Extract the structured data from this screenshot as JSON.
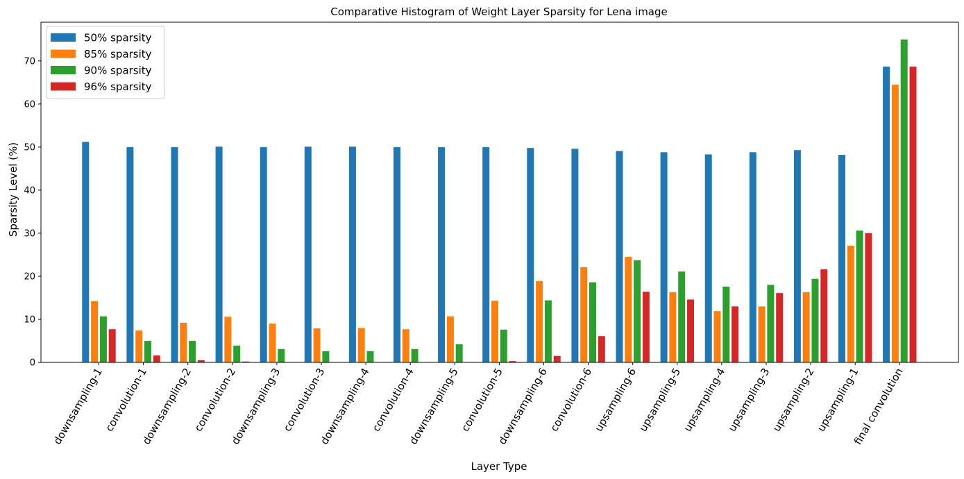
{
  "chart_data": {
    "type": "bar",
    "title": "Comparative Histogram of Weight Layer Sparsity for Lena image",
    "xlabel": "Layer Type",
    "ylabel": "Sparsity Level (%)",
    "ylim": [
      0,
      79
    ],
    "yticks": [
      0,
      10,
      20,
      30,
      40,
      50,
      60,
      70
    ],
    "legend_position": "top-left",
    "grid": false,
    "categories": [
      "downsampling-1",
      "convolution-1",
      "downsampling-2",
      "convolution-2",
      "downsampling-3",
      "convolution-3",
      "downsampling-4",
      "convolution-4",
      "downsampling-5",
      "convolution-5",
      "downsampling-6",
      "convolution-6",
      "upsampling-6",
      "upsampling-5",
      "upsampling-4",
      "upsampling-3",
      "upsampling-2",
      "upsampling-1",
      "final convolution"
    ],
    "series": [
      {
        "name": "50% sparsity",
        "color": "#1f77b4",
        "values": [
          51.2,
          50.0,
          50.0,
          50.1,
          50.0,
          50.1,
          50.1,
          50.0,
          50.0,
          50.0,
          49.8,
          49.6,
          49.1,
          48.8,
          48.3,
          48.8,
          49.3,
          48.2,
          68.7
        ]
      },
      {
        "name": "85% sparsity",
        "color": "#ff7f0e",
        "values": [
          14.2,
          7.4,
          9.2,
          10.6,
          9.0,
          7.9,
          8.0,
          7.7,
          10.7,
          14.3,
          18.9,
          22.1,
          24.5,
          16.3,
          11.9,
          13.0,
          16.3,
          27.1,
          64.5
        ]
      },
      {
        "name": "90% sparsity",
        "color": "#2ca02c",
        "values": [
          10.7,
          5.0,
          5.0,
          3.9,
          3.1,
          2.6,
          2.6,
          3.1,
          4.2,
          7.6,
          14.4,
          18.6,
          23.7,
          21.1,
          17.6,
          18.0,
          19.4,
          30.6,
          75.0
        ]
      },
      {
        "name": "96% sparsity",
        "color": "#d62728",
        "values": [
          7.7,
          1.6,
          0.5,
          0.2,
          0.0,
          0.0,
          0.0,
          0.0,
          0.0,
          0.3,
          1.5,
          6.1,
          16.4,
          14.6,
          13.0,
          16.1,
          21.6,
          30.0,
          68.7
        ]
      }
    ]
  }
}
